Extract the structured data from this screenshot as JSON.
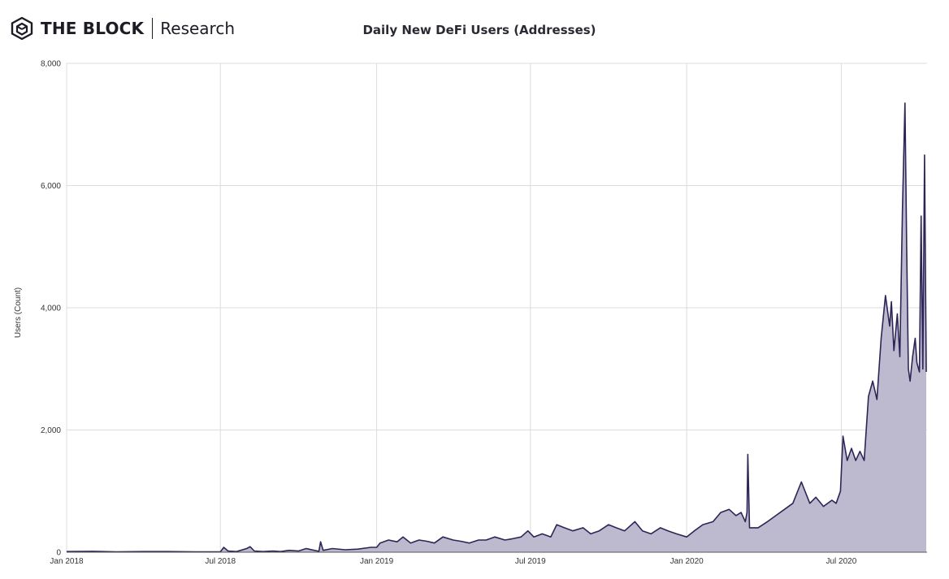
{
  "brand": {
    "name": "THE BLOCK",
    "sub": "Research",
    "icon": "block-cube-icon"
  },
  "colors": {
    "line": "#2b2656",
    "area": "#bdb9cf",
    "grid": "#dcdcdc",
    "text": "#333333"
  },
  "chart_data": {
    "type": "area",
    "title": "Daily New DeFi Users (Addresses)",
    "xlabel": "",
    "ylabel": "Users (Count)",
    "ylim": [
      0,
      8000
    ],
    "yticks": [
      0,
      2000,
      4000,
      6000,
      8000
    ],
    "ytick_labels": [
      "0",
      "2,000",
      "4,000",
      "6,000",
      "8,000"
    ],
    "xlim": [
      "2018-01-01",
      "2020-10-10"
    ],
    "xticks": [
      "2018-01-01",
      "2018-07-01",
      "2019-01-01",
      "2019-07-01",
      "2020-01-01",
      "2020-07-01"
    ],
    "xtick_labels": [
      "Jan 2018",
      "Jul 2018",
      "Jan 2019",
      "Jul 2019",
      "Jan 2020",
      "Jul 2020"
    ],
    "grid": true,
    "series": [
      {
        "name": "",
        "x": [
          "2018-01-01",
          "2018-02-01",
          "2018-03-01",
          "2018-04-01",
          "2018-05-01",
          "2018-06-01",
          "2018-07-01",
          "2018-07-05",
          "2018-07-10",
          "2018-07-20",
          "2018-08-01",
          "2018-08-05",
          "2018-08-10",
          "2018-08-20",
          "2018-09-01",
          "2018-09-10",
          "2018-09-20",
          "2018-10-01",
          "2018-10-10",
          "2018-10-25",
          "2018-10-27",
          "2018-10-30",
          "2018-11-10",
          "2018-11-25",
          "2018-12-10",
          "2018-12-25",
          "2019-01-01",
          "2019-01-05",
          "2019-01-15",
          "2019-01-25",
          "2019-02-01",
          "2019-02-10",
          "2019-02-20",
          "2019-03-01",
          "2019-03-10",
          "2019-03-20",
          "2019-04-01",
          "2019-04-10",
          "2019-04-20",
          "2019-05-01",
          "2019-05-10",
          "2019-05-20",
          "2019-06-01",
          "2019-06-10",
          "2019-06-20",
          "2019-06-28",
          "2019-07-05",
          "2019-07-15",
          "2019-07-25",
          "2019-08-01",
          "2019-08-10",
          "2019-08-20",
          "2019-09-01",
          "2019-09-10",
          "2019-09-20",
          "2019-10-01",
          "2019-10-10",
          "2019-10-20",
          "2019-11-01",
          "2019-11-10",
          "2019-11-20",
          "2019-12-01",
          "2019-12-10",
          "2019-12-20",
          "2020-01-01",
          "2020-01-10",
          "2020-01-20",
          "2020-02-01",
          "2020-02-10",
          "2020-02-20",
          "2020-02-28",
          "2020-03-05",
          "2020-03-10",
          "2020-03-12",
          "2020-03-13",
          "2020-03-15",
          "2020-03-25",
          "2020-04-05",
          "2020-04-15",
          "2020-04-25",
          "2020-05-05",
          "2020-05-15",
          "2020-05-25",
          "2020-06-01",
          "2020-06-10",
          "2020-06-20",
          "2020-06-25",
          "2020-06-30",
          "2020-07-03",
          "2020-07-08",
          "2020-07-13",
          "2020-07-18",
          "2020-07-23",
          "2020-07-28",
          "2020-08-02",
          "2020-08-07",
          "2020-08-12",
          "2020-08-17",
          "2020-08-22",
          "2020-08-27",
          "2020-08-29",
          "2020-09-01",
          "2020-09-05",
          "2020-09-08",
          "2020-09-11",
          "2020-09-14",
          "2020-09-16",
          "2020-09-18",
          "2020-09-20",
          "2020-09-23",
          "2020-09-26",
          "2020-09-28",
          "2020-10-01",
          "2020-10-03",
          "2020-10-05",
          "2020-10-07",
          "2020-10-09"
        ],
        "values": [
          10,
          15,
          5,
          10,
          10,
          5,
          5,
          80,
          20,
          10,
          60,
          90,
          20,
          10,
          20,
          10,
          30,
          20,
          60,
          15,
          170,
          30,
          60,
          40,
          50,
          80,
          80,
          150,
          200,
          170,
          250,
          150,
          200,
          180,
          150,
          250,
          200,
          180,
          150,
          200,
          200,
          250,
          200,
          220,
          250,
          350,
          250,
          300,
          250,
          450,
          400,
          350,
          400,
          300,
          350,
          450,
          400,
          350,
          500,
          350,
          300,
          400,
          350,
          300,
          250,
          350,
          450,
          500,
          650,
          700,
          600,
          650,
          500,
          650,
          1600,
          400,
          400,
          500,
          600,
          700,
          800,
          1150,
          800,
          900,
          750,
          850,
          800,
          1000,
          1900,
          1500,
          1700,
          1500,
          1650,
          1500,
          2550,
          2800,
          2500,
          3500,
          4200,
          3700,
          4100,
          3300,
          3900,
          3200,
          5600,
          7350,
          5000,
          3000,
          2800,
          3200,
          3500,
          3100,
          2950,
          5500,
          3000,
          6500,
          2950
        ]
      }
    ]
  }
}
